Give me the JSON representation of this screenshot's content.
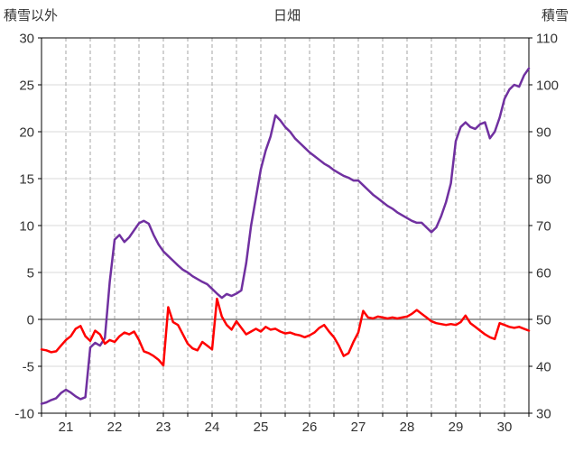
{
  "header": {
    "left_axis_title": "積雪以外",
    "title": "日畑",
    "right_axis_title": "積雪"
  },
  "chart_data": {
    "type": "line",
    "title": "日畑",
    "xlim": [
      20.5,
      30.5
    ],
    "x_start": 20.5,
    "x_step": 0.1,
    "x_ticks": [
      21,
      22,
      23,
      24,
      25,
      26,
      27,
      28,
      29,
      30
    ],
    "x_minor_grid_step": 0.5,
    "left_axis": {
      "title": "積雪以外",
      "lim": [
        -10,
        30
      ],
      "ticks": [
        30,
        25,
        20,
        15,
        10,
        5,
        0,
        -5,
        -10
      ]
    },
    "right_axis": {
      "title": "積雪",
      "lim": [
        30,
        110
      ],
      "ticks": [
        110,
        100,
        90,
        80,
        70,
        60,
        50,
        40,
        30
      ]
    },
    "grid": {
      "vertical": "dashed gray every 0.5 day",
      "horizontal": "solid light gray every 5 (left scale)",
      "zero_line": "solid gray at left-axis 0"
    },
    "colors": {
      "snow": "#7030A0",
      "non_snow": "#FF0000",
      "grid_v": "#A6A6A6",
      "grid_h": "#D9D9D9",
      "zero": "#808080",
      "border": "#000000"
    },
    "series": [
      {
        "name": "積雪",
        "key": "snow",
        "axis": "right",
        "color": "#7030A0",
        "values": [
          32.0,
          32.3,
          32.8,
          33.2,
          34.3,
          35.0,
          34.4,
          33.6,
          33.0,
          33.4,
          44.0,
          45.0,
          44.4,
          46.0,
          58.0,
          67.0,
          68.0,
          66.5,
          67.5,
          69.0,
          70.5,
          71.0,
          70.4,
          68.0,
          66.0,
          64.5,
          63.5,
          62.5,
          61.5,
          60.6,
          60.0,
          59.2,
          58.6,
          58.0,
          57.5,
          56.5,
          55.5,
          54.6,
          55.4,
          55.0,
          55.5,
          56.2,
          62.0,
          70.0,
          76.0,
          82.0,
          86.0,
          89.0,
          93.5,
          92.4,
          91.0,
          90.0,
          88.6,
          87.6,
          86.6,
          85.6,
          84.8,
          84.0,
          83.2,
          82.6,
          81.8,
          81.2,
          80.6,
          80.2,
          79.6,
          79.6,
          78.6,
          77.6,
          76.6,
          75.8,
          75.0,
          74.2,
          73.6,
          72.8,
          72.2,
          71.6,
          71.0,
          70.6,
          70.6,
          69.6,
          68.6,
          69.6,
          72.0,
          75.0,
          79.0,
          88.0,
          91.0,
          92.0,
          91.0,
          90.6,
          91.6,
          92.0,
          88.6,
          90.0,
          93.0,
          97.0,
          99.0,
          100.0,
          99.6,
          102.0,
          103.5
        ]
      },
      {
        "name": "積雪以外",
        "key": "non_snow",
        "axis": "left",
        "color": "#FF0000",
        "values": [
          -3.2,
          -3.3,
          -3.5,
          -3.4,
          -2.8,
          -2.2,
          -1.8,
          -1.0,
          -0.7,
          -1.8,
          -2.3,
          -1.2,
          -1.6,
          -2.6,
          -2.2,
          -2.4,
          -1.8,
          -1.4,
          -1.6,
          -1.3,
          -2.2,
          -3.4,
          -3.6,
          -3.9,
          -4.3,
          -4.9,
          1.3,
          -0.3,
          -0.6,
          -1.6,
          -2.6,
          -3.1,
          -3.3,
          -2.4,
          -2.8,
          -3.2,
          2.2,
          0.3,
          -0.6,
          -1.1,
          -0.2,
          -0.9,
          -1.6,
          -1.3,
          -1.0,
          -1.3,
          -0.8,
          -1.1,
          -1.0,
          -1.3,
          -1.5,
          -1.4,
          -1.6,
          -1.7,
          -1.9,
          -1.7,
          -1.4,
          -0.9,
          -0.6,
          -1.3,
          -1.9,
          -2.8,
          -3.9,
          -3.6,
          -2.4,
          -1.4,
          0.9,
          0.2,
          0.1,
          0.3,
          0.2,
          0.1,
          0.2,
          0.1,
          0.2,
          0.3,
          0.6,
          1.0,
          0.6,
          0.2,
          -0.2,
          -0.4,
          -0.5,
          -0.6,
          -0.5,
          -0.6,
          -0.3,
          0.4,
          -0.4,
          -0.8,
          -1.2,
          -1.6,
          -1.9,
          -2.1,
          -0.4,
          -0.6,
          -0.8,
          -0.9,
          -0.8,
          -1.0,
          -1.2
        ]
      }
    ]
  }
}
